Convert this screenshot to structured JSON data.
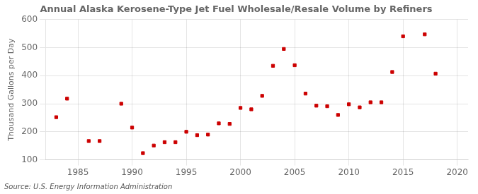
{
  "chart_data": {
    "type": "scatter",
    "title": "Annual Alaska Kerosene-Type Jet Fuel Wholesale/Resale Volume by Refiners",
    "ylabel": "Thousand Gallons per Day",
    "source": "Source: U.S. Energy Information Administration",
    "x": [
      1983,
      1984,
      1986,
      1987,
      1989,
      1990,
      1991,
      1992,
      1993,
      1994,
      1995,
      1996,
      1997,
      1998,
      1999,
      2000,
      2001,
      2002,
      2003,
      2004,
      2005,
      2006,
      2007,
      2008,
      2009,
      2010,
      2011,
      2012,
      2013,
      2014,
      2015,
      2017,
      2018
    ],
    "values": [
      252,
      318,
      167,
      167,
      300,
      215,
      124,
      151,
      163,
      163,
      200,
      188,
      190,
      230,
      228,
      285,
      280,
      328,
      435,
      495,
      437,
      336,
      293,
      291,
      260,
      298,
      287,
      305,
      305,
      413,
      540,
      547,
      407
    ],
    "color": "#cc0000",
    "marker": "square",
    "xlim": [
      1982,
      2021
    ],
    "ylim": [
      100,
      600
    ],
    "xticks": [
      1985,
      1990,
      1995,
      2000,
      2005,
      2010,
      2015,
      2020
    ],
    "yticks": [
      100,
      200,
      300,
      400,
      500,
      600
    ],
    "grid": true
  }
}
